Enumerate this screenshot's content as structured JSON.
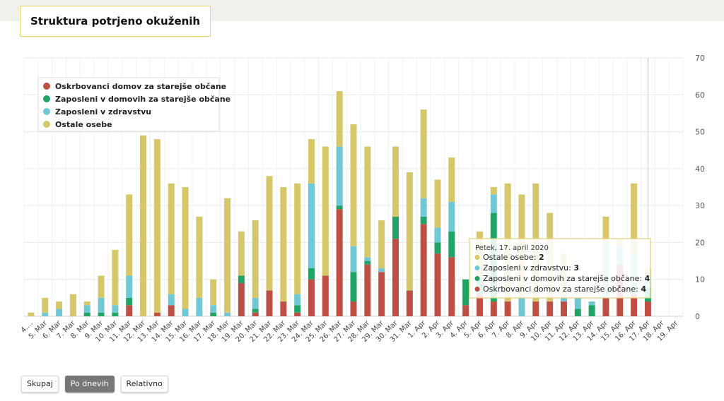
{
  "title": "Struktura potrjeno okuženih",
  "buttons": [
    {
      "label": "Skupaj",
      "active": false
    },
    {
      "label": "Po dnevih",
      "active": true
    },
    {
      "label": "Relativno",
      "active": false
    }
  ],
  "colors": {
    "oskrbovanci": "#be4f45",
    "zaposleni_domovi": "#21a366",
    "zaposleni_zdravstvo": "#70c8d4",
    "ostale": "#d6c76b",
    "tooltip_border": "#e3cf79",
    "grid": "#e9e9e9"
  },
  "tooltip": {
    "date": "Petek, 17. april 2020",
    "rows": [
      {
        "label": "Ostale osebe:",
        "value": "2",
        "series": "ostale"
      },
      {
        "label": "Zaposleni v zdravstvu:",
        "value": "3",
        "series": "zaposleni_zdravstvo"
      },
      {
        "label": "Zaposleni v domovih za starejše občane:",
        "value": "4",
        "series": "zaposleni_domovi"
      },
      {
        "label": "Oskrbovanci domov za starejše občane:",
        "value": "4",
        "series": "oskrbovanci"
      }
    ]
  },
  "chart_data": {
    "type": "bar",
    "stacked": true,
    "categories": [
      "4. Mar",
      "5. Mar",
      "6. Mar",
      "7. Mar",
      "8. Mar",
      "9. Mar",
      "10. Mar",
      "11. Mar",
      "12. Mar",
      "13. Mar",
      "14. Mar",
      "15. Mar",
      "16. Mar",
      "17. Mar",
      "18. Mar",
      "19. Mar",
      "20. Mar",
      "21. Mar",
      "22. Mar",
      "23. Mar",
      "24. Mar",
      "25. Mar",
      "26. Mar",
      "27. Mar",
      "28. Mar",
      "29. Mar",
      "30. Mar",
      "31. Mar",
      "1. Apr",
      "2. Apr",
      "3. Apr",
      "4. Apr",
      "5. Apr",
      "6. Apr",
      "7. Apr",
      "8. Apr",
      "9. Apr",
      "10. Apr",
      "11. Apr",
      "12. Apr",
      "13. Apr",
      "14. Apr",
      "15. Apr",
      "16. Apr",
      "17. Apr",
      "18. Apr",
      "19. Apr"
    ],
    "first_tick_label": "4....",
    "series": [
      {
        "key": "oskrbovanci",
        "name": "Oskrbovanci domov za starejše občane",
        "values": [
          0,
          0,
          0,
          0,
          0,
          0,
          0,
          3,
          0,
          1,
          3,
          0,
          0,
          0,
          0,
          9,
          1,
          7,
          4,
          1,
          10,
          11,
          29,
          4,
          14,
          12,
          21,
          7,
          25,
          17,
          16,
          3,
          6,
          4,
          4,
          0,
          4,
          4,
          4,
          0,
          0,
          5,
          14,
          6,
          4,
          0,
          0
        ]
      },
      {
        "key": "zaposleni_domovi",
        "name": "Zaposleni v domovih za starejše občane",
        "values": [
          0,
          0,
          0,
          0,
          1,
          1,
          1,
          2,
          0,
          0,
          0,
          0,
          0,
          1,
          0,
          2,
          1,
          0,
          0,
          2,
          3,
          0,
          1,
          8,
          1,
          0,
          6,
          0,
          2,
          3,
          7,
          7,
          4,
          24,
          0,
          0,
          0,
          0,
          0,
          2,
          3,
          0,
          0,
          0,
          4,
          0,
          0
        ]
      },
      {
        "key": "zaposleni_zdravstvo",
        "name": "Zaposleni v zdravstvu",
        "values": [
          0,
          1,
          2,
          0,
          2,
          4,
          2,
          6,
          0,
          0,
          3,
          2,
          5,
          2,
          1,
          0,
          3,
          0,
          0,
          3,
          23,
          0,
          16,
          7,
          1,
          1,
          0,
          0,
          5,
          4,
          8,
          0,
          0,
          5,
          0,
          5,
          0,
          0,
          1,
          3,
          1,
          15,
          5,
          11,
          3,
          0,
          0
        ]
      },
      {
        "key": "ostale",
        "name": "Ostale osebe",
        "values": [
          1,
          4,
          2,
          6,
          1,
          6,
          15,
          22,
          49,
          47,
          30,
          33,
          22,
          7,
          31,
          12,
          21,
          31,
          31,
          30,
          12,
          35,
          15,
          33,
          30,
          13,
          19,
          32,
          24,
          13,
          12,
          0,
          13,
          2,
          32,
          28,
          32,
          24,
          12,
          0,
          0,
          7,
          2,
          19,
          2,
          0,
          0
        ]
      }
    ],
    "y_ticks": [
      0,
      10,
      20,
      30,
      40,
      50,
      60,
      70
    ],
    "ylim": [
      0,
      70
    ],
    "y_axis_position": "right",
    "grid": true,
    "legend_position": "top-left",
    "highlighted_category": "17. Apr"
  }
}
